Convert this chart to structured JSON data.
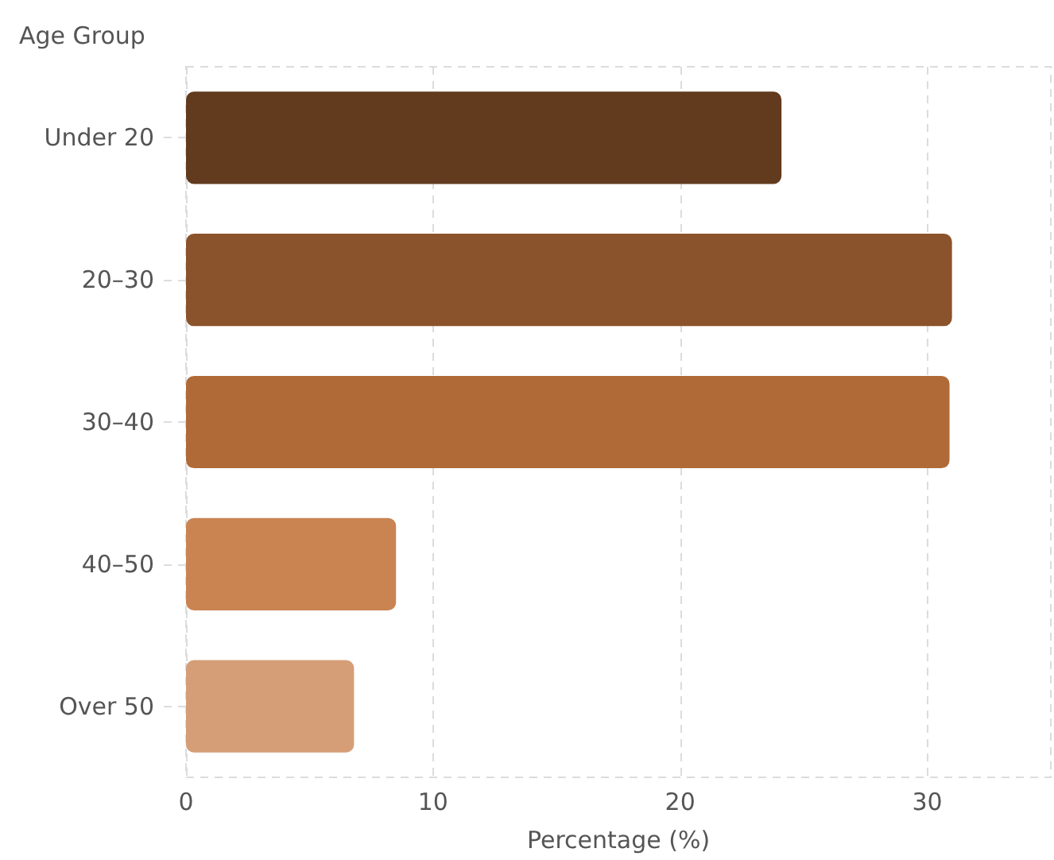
{
  "chart_data": {
    "type": "bar",
    "orientation": "horizontal",
    "ylabel": "Age Group",
    "xlabel": "Percentage (%)",
    "categories": [
      "Under 20",
      "20–30",
      "30–40",
      "40–50",
      "Over 50"
    ],
    "values": [
      24.1,
      31.0,
      30.9,
      8.5,
      6.8
    ],
    "colors": [
      "#623a1e",
      "#8b532b",
      "#b06a37",
      "#ca8452",
      "#d59e77"
    ],
    "xlim": [
      0,
      35
    ],
    "xticks": [
      0,
      10,
      20,
      30
    ],
    "grid": "x"
  }
}
